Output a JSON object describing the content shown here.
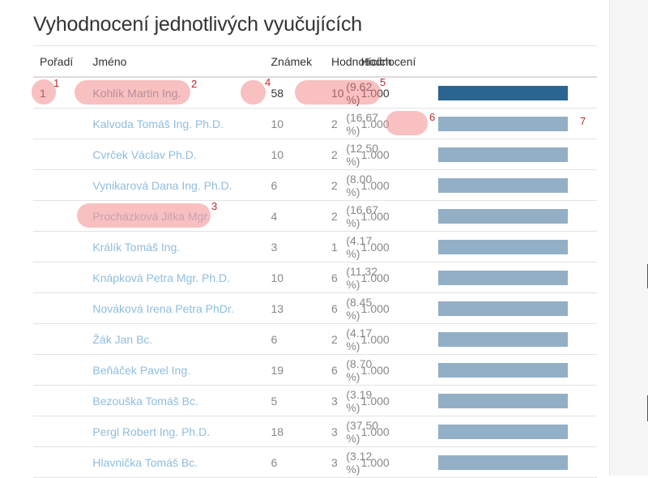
{
  "page": {
    "title": "Vyhodnocení jednotlivých vyučujících"
  },
  "table": {
    "headers": {
      "rank": "Pořadí",
      "name": "Jméno",
      "count": "Známek",
      "raters": "Hodnotících",
      "score": "Hodnocení"
    },
    "rows": [
      {
        "rank": "1",
        "name": "Kohlík Martin Ing.",
        "count": "58",
        "raters_n": "10",
        "raters_pct": "(9.62 %)",
        "score": "1.000",
        "bar": 1.0
      },
      {
        "rank": "",
        "name": "Kalvoda Tomáš Ing. Ph.D.",
        "count": "10",
        "raters_n": "2",
        "raters_pct": "(16.67 %)",
        "score": "1.000",
        "bar": 1.0
      },
      {
        "rank": "",
        "name": "Cvrček Václav Ph.D.",
        "count": "10",
        "raters_n": "2",
        "raters_pct": "(12.50 %)",
        "score": "1.000",
        "bar": 1.0
      },
      {
        "rank": "",
        "name": "Vynikarová Dana Ing. Ph.D.",
        "count": "6",
        "raters_n": "2",
        "raters_pct": "(8.00 %)",
        "score": "1.000",
        "bar": 1.0
      },
      {
        "rank": "",
        "name": "Procházková Jitka Mgr.",
        "count": "4",
        "raters_n": "2",
        "raters_pct": "(16.67 %)",
        "score": "1.000",
        "bar": 1.0
      },
      {
        "rank": "",
        "name": "Králík Tomáš Ing.",
        "count": "3",
        "raters_n": "1",
        "raters_pct": "(4.17 %)",
        "score": "1.000",
        "bar": 1.0
      },
      {
        "rank": "",
        "name": "Knápková Petra Mgr. Ph.D.",
        "count": "10",
        "raters_n": "6",
        "raters_pct": "(11.32 %)",
        "score": "1.000",
        "bar": 1.0
      },
      {
        "rank": "",
        "name": "Nováková Irena Petra PhDr.",
        "count": "13",
        "raters_n": "6",
        "raters_pct": "(8.45 %)",
        "score": "1.000",
        "bar": 1.0
      },
      {
        "rank": "",
        "name": "Žák Jan Bc.",
        "count": "6",
        "raters_n": "2",
        "raters_pct": "(4.17 %)",
        "score": "1.000",
        "bar": 1.0
      },
      {
        "rank": "",
        "name": "Beňáček Pavel Ing.",
        "count": "19",
        "raters_n": "6",
        "raters_pct": "(8.70 %)",
        "score": "1.000",
        "bar": 1.0
      },
      {
        "rank": "",
        "name": "Bezouška Tomáš Bc.",
        "count": "5",
        "raters_n": "3",
        "raters_pct": "(3.19 %)",
        "score": "1.000",
        "bar": 1.0
      },
      {
        "rank": "",
        "name": "Pergl Robert Ing. Ph.D.",
        "count": "18",
        "raters_n": "3",
        "raters_pct": "(37.50 %)",
        "score": "1.000",
        "bar": 1.0
      },
      {
        "rank": "",
        "name": "Hlavnička Tomáš Bc.",
        "count": "6",
        "raters_n": "3",
        "raters_pct": "(3.12 %)",
        "score": "1.000",
        "bar": 1.0
      }
    ]
  },
  "annotations": [
    "1",
    "2",
    "3",
    "4",
    "5",
    "6",
    "7"
  ],
  "colors": {
    "highlight": "#f28c8c",
    "annotation": "#c0272d",
    "bar_top": "#2a6491",
    "bar": "#93afc6",
    "link": "#8fbde0"
  }
}
